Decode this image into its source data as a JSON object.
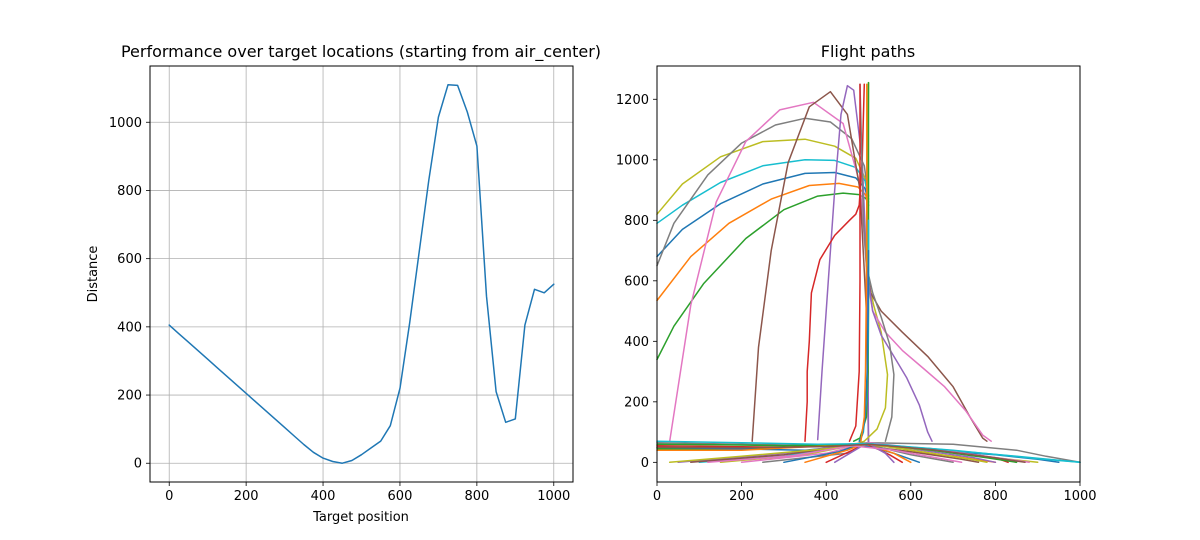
{
  "chart_data": [
    {
      "type": "line",
      "title": "Performance over target locations (starting from air_center)",
      "xlabel": "Target position",
      "ylabel": "Distance",
      "xlim": [
        -50,
        1050
      ],
      "ylim": [
        -55,
        1165
      ],
      "grid": true,
      "xticks": [
        0,
        200,
        400,
        600,
        800,
        1000
      ],
      "yticks": [
        0,
        200,
        400,
        600,
        800,
        1000
      ],
      "series": [
        {
          "color": "#1f77b4",
          "x": [
            0,
            25,
            50,
            75,
            100,
            125,
            150,
            175,
            200,
            225,
            250,
            275,
            300,
            325,
            350,
            375,
            400,
            425,
            450,
            475,
            500,
            525,
            550,
            575,
            600,
            625,
            650,
            675,
            700,
            725,
            750,
            775,
            800,
            825,
            850,
            875,
            900,
            925,
            950,
            975,
            1000
          ],
          "y": [
            405,
            380,
            355,
            330,
            305,
            280,
            255,
            230,
            205,
            180,
            155,
            130,
            105,
            80,
            55,
            32,
            15,
            5,
            0,
            8,
            25,
            45,
            65,
            110,
            220,
            410,
            620,
            830,
            1015,
            1110,
            1108,
            1030,
            930,
            490,
            210,
            120,
            130,
            405,
            510,
            500,
            525
          ]
        }
      ]
    },
    {
      "type": "line",
      "title": "Flight paths",
      "xlabel": "",
      "ylabel": "",
      "xlim": [
        0,
        1000
      ],
      "ylim": [
        -65,
        1310
      ],
      "grid": false,
      "xticks": [
        0,
        200,
        400,
        600,
        800,
        1000
      ],
      "yticks": [
        0,
        200,
        400,
        600,
        800,
        1000,
        1200
      ],
      "series": [
        {
          "color": "#bcbd22",
          "x": [
            500,
            490,
            470,
            420,
            350,
            250,
            150,
            60,
            0
          ],
          "y": [
            870,
            945,
            1005,
            1045,
            1068,
            1060,
            1010,
            920,
            820
          ]
        },
        {
          "color": "#17becf",
          "x": [
            500,
            492,
            470,
            420,
            350,
            250,
            150,
            60,
            0
          ],
          "y": [
            870,
            930,
            975,
            998,
            1000,
            980,
            925,
            850,
            790
          ]
        },
        {
          "color": "#1f77b4",
          "x": [
            500,
            492,
            470,
            420,
            350,
            250,
            150,
            60,
            0
          ],
          "y": [
            860,
            905,
            940,
            958,
            955,
            920,
            855,
            770,
            680
          ]
        },
        {
          "color": "#ff7f0e",
          "x": [
            500,
            493,
            475,
            430,
            360,
            270,
            170,
            80,
            0
          ],
          "y": [
            850,
            885,
            910,
            922,
            915,
            870,
            790,
            680,
            535
          ]
        },
        {
          "color": "#2ca02c",
          "x": [
            500,
            494,
            478,
            440,
            380,
            300,
            210,
            110,
            40,
            0
          ],
          "y": [
            850,
            872,
            885,
            890,
            880,
            835,
            740,
            590,
            450,
            340
          ]
        },
        {
          "color": "#7f7f7f",
          "x": [
            500,
            490,
            460,
            410,
            350,
            280,
            200,
            120,
            40,
            0
          ],
          "y": [
            880,
            980,
            1070,
            1125,
            1137,
            1115,
            1055,
            950,
            790,
            650
          ]
        },
        {
          "color": "#e377c2",
          "x": [
            500,
            498,
            480,
            440,
            370,
            290,
            210,
            140,
            80,
            30
          ],
          "y": [
            60,
            600,
            920,
            1120,
            1190,
            1165,
            1060,
            860,
            520,
            70
          ]
        },
        {
          "color": "#8c564b",
          "x": [
            500,
            495,
            480,
            450,
            410,
            360,
            310,
            270,
            240,
            225
          ],
          "y": [
            60,
            500,
            900,
            1150,
            1225,
            1175,
            990,
            700,
            380,
            70
          ]
        },
        {
          "color": "#9467bd",
          "x": [
            500,
            497,
            485,
            465,
            450,
            435,
            420,
            405,
            390,
            380
          ],
          "y": [
            60,
            600,
            1000,
            1230,
            1245,
            1150,
            900,
            600,
            300,
            75
          ]
        },
        {
          "color": "#d62728",
          "x": [
            490,
            485,
            478,
            470,
            455,
            420,
            385,
            365,
            360,
            355,
            355,
            350
          ],
          "y": [
            1250,
            1000,
            850,
            820,
            800,
            750,
            670,
            560,
            400,
            300,
            200,
            70
          ]
        },
        {
          "color": "#bcbd22",
          "x": [
            500,
            498,
            497,
            500,
            512,
            530,
            545,
            540,
            520,
            490,
            470
          ],
          "y": [
            1255,
            900,
            700,
            600,
            520,
            430,
            290,
            180,
            110,
            70,
            60
          ]
        },
        {
          "color": "#8c564b",
          "x": [
            500,
            505,
            530,
            580,
            640,
            700,
            740,
            770,
            780
          ],
          "y": [
            620,
            560,
            500,
            430,
            350,
            250,
            150,
            80,
            70
          ]
        },
        {
          "color": "#e377c2",
          "x": [
            500,
            510,
            540,
            580,
            630,
            680,
            730,
            770,
            790
          ],
          "y": [
            580,
            500,
            430,
            370,
            310,
            250,
            170,
            90,
            70
          ]
        },
        {
          "color": "#9467bd",
          "x": [
            500,
            510,
            530,
            560,
            590,
            620,
            640,
            650
          ],
          "y": [
            600,
            500,
            420,
            350,
            280,
            190,
            100,
            70
          ]
        },
        {
          "color": "#7f7f7f",
          "x": [
            480,
            488,
            495,
            510,
            530,
            550,
            560,
            555,
            540
          ],
          "y": [
            1250,
            800,
            650,
            560,
            480,
            390,
            290,
            150,
            70
          ]
        },
        {
          "color": "#2ca02c",
          "x": [
            500,
            500,
            500,
            500,
            499,
            495,
            480,
            465
          ],
          "y": [
            1255,
            900,
            700,
            500,
            300,
            150,
            80,
            70
          ]
        },
        {
          "color": "#d62728",
          "x": [
            480,
            480,
            480,
            478,
            470,
            455
          ],
          "y": [
            1250,
            900,
            600,
            300,
            120,
            70
          ]
        },
        {
          "color": "#17becf",
          "x": [
            500,
            500,
            499,
            495,
            488,
            480
          ],
          "y": [
            800,
            600,
            400,
            200,
            100,
            70
          ]
        },
        {
          "color": "#1f77b4",
          "x": [
            500,
            499,
            497,
            492,
            485,
            478
          ],
          "y": [
            700,
            500,
            300,
            150,
            90,
            70
          ]
        },
        {
          "color": "#ff7f0e",
          "x": [
            496,
            496,
            495,
            493,
            490,
            482
          ],
          "y": [
            1250,
            900,
            600,
            300,
            150,
            70
          ]
        },
        {
          "color": "#7f7f7f",
          "x": [
            0,
            200,
            400,
            500,
            700,
            850,
            920,
            1000
          ],
          "y": [
            65,
            60,
            55,
            65,
            60,
            40,
            20,
            0
          ]
        },
        {
          "color": "#d62728",
          "x": [
            0,
            300,
            480,
            600,
            700,
            800,
            830
          ],
          "y": [
            55,
            50,
            62,
            50,
            35,
            15,
            0
          ]
        },
        {
          "color": "#2ca02c",
          "x": [
            0,
            250,
            470,
            650,
            750,
            820,
            850
          ],
          "y": [
            45,
            45,
            60,
            45,
            25,
            10,
            0
          ]
        },
        {
          "color": "#1f77b4",
          "x": [
            0,
            350,
            490,
            650,
            800,
            900,
            950
          ],
          "y": [
            50,
            40,
            60,
            40,
            25,
            10,
            0
          ]
        },
        {
          "color": "#ff7f0e",
          "x": [
            0,
            200,
            450,
            500,
            700,
            800
          ],
          "y": [
            40,
            40,
            58,
            50,
            20,
            0
          ]
        },
        {
          "color": "#9467bd",
          "x": [
            50,
            300,
            480,
            600,
            750,
            800
          ],
          "y": [
            0,
            30,
            60,
            45,
            15,
            0
          ]
        },
        {
          "color": "#17becf",
          "x": [
            100,
            300,
            450,
            500,
            650,
            850,
            1000
          ],
          "y": [
            0,
            20,
            55,
            60,
            45,
            20,
            0
          ]
        },
        {
          "color": "#bcbd22",
          "x": [
            150,
            350,
            480,
            650,
            800,
            900
          ],
          "y": [
            0,
            25,
            60,
            40,
            15,
            0
          ]
        },
        {
          "color": "#e377c2",
          "x": [
            200,
            400,
            500,
            700,
            820,
            880
          ],
          "y": [
            0,
            30,
            65,
            35,
            12,
            0
          ]
        },
        {
          "color": "#8c564b",
          "x": [
            80,
            300,
            470,
            600,
            720,
            760
          ],
          "y": [
            0,
            25,
            58,
            35,
            10,
            0
          ]
        },
        {
          "color": "#7f7f7f",
          "x": [
            250,
            450,
            490,
            600,
            700
          ],
          "y": [
            0,
            30,
            62,
            25,
            0
          ]
        },
        {
          "color": "#2ca02c",
          "x": [
            0,
            150,
            300,
            450,
            500,
            650,
            780,
            850
          ],
          "y": [
            60,
            58,
            55,
            60,
            62,
            40,
            15,
            0
          ]
        },
        {
          "color": "#1f77b4",
          "x": [
            300,
            430,
            480,
            560,
            620
          ],
          "y": [
            0,
            35,
            60,
            30,
            0
          ]
        },
        {
          "color": "#ff7f0e",
          "x": [
            350,
            450,
            490,
            560,
            600
          ],
          "y": [
            0,
            40,
            62,
            30,
            0
          ]
        },
        {
          "color": "#d62728",
          "x": [
            400,
            470,
            495,
            550,
            580
          ],
          "y": [
            0,
            45,
            62,
            25,
            0
          ]
        },
        {
          "color": "#9467bd",
          "x": [
            420,
            480,
            500,
            540,
            560
          ],
          "y": [
            0,
            50,
            62,
            30,
            0
          ]
        },
        {
          "color": "#bcbd22",
          "x": [
            30,
            200,
            400,
            500,
            650,
            750,
            780
          ],
          "y": [
            0,
            20,
            45,
            60,
            30,
            8,
            0
          ]
        },
        {
          "color": "#17becf",
          "x": [
            0,
            200,
            380,
            500,
            700,
            900,
            1000
          ],
          "y": [
            70,
            65,
            60,
            62,
            40,
            12,
            0
          ]
        },
        {
          "color": "#e377c2",
          "x": [
            120,
            320,
            460,
            560,
            680,
            720
          ],
          "y": [
            0,
            22,
            55,
            40,
            10,
            0
          ]
        },
        {
          "color": "#8c564b",
          "x": [
            0,
            200,
            400,
            500,
            650,
            800,
            870
          ],
          "y": [
            50,
            48,
            52,
            60,
            42,
            15,
            0
          ]
        }
      ]
    }
  ]
}
